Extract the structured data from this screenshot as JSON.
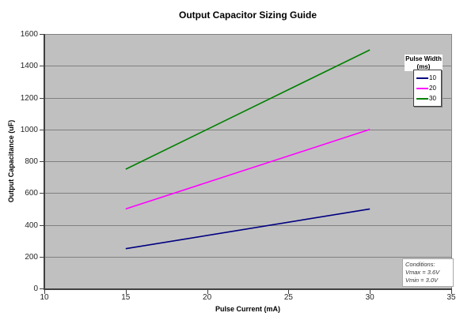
{
  "chart_data": {
    "type": "line",
    "title": "Output Capacitor Sizing Guide",
    "xlabel": "Pulse Current (mA)",
    "ylabel": "Output Capacitance (uF)",
    "xlim": [
      10,
      35
    ],
    "ylim": [
      0,
      1600
    ],
    "x_ticks": [
      10,
      15,
      20,
      25,
      30,
      35
    ],
    "y_ticks": [
      0,
      200,
      400,
      600,
      800,
      1000,
      1200,
      1400,
      1600
    ],
    "grid": "horizontal",
    "plot_background": "#c0c0c0",
    "gridline_color": "#808080",
    "legend": {
      "title": "Pulse Width",
      "subtitle": "(ms)",
      "position": "top-right",
      "entries": [
        {
          "label": "10",
          "color": "#000080"
        },
        {
          "label": "20",
          "color": "#ff00ff"
        },
        {
          "label": "30",
          "color": "#008000"
        }
      ]
    },
    "series": [
      {
        "name": "10",
        "color": "#000080",
        "x": [
          15,
          30
        ],
        "values": [
          250,
          500
        ]
      },
      {
        "name": "20",
        "color": "#ff00ff",
        "x": [
          15,
          30
        ],
        "values": [
          500,
          1000
        ]
      },
      {
        "name": "30",
        "color": "#008000",
        "x": [
          15,
          30
        ],
        "values": [
          750,
          1500
        ]
      }
    ],
    "annotation": {
      "lines": [
        "Conditions:",
        "Vmax = 3.6V",
        "Vmin = 3.0V"
      ]
    }
  }
}
